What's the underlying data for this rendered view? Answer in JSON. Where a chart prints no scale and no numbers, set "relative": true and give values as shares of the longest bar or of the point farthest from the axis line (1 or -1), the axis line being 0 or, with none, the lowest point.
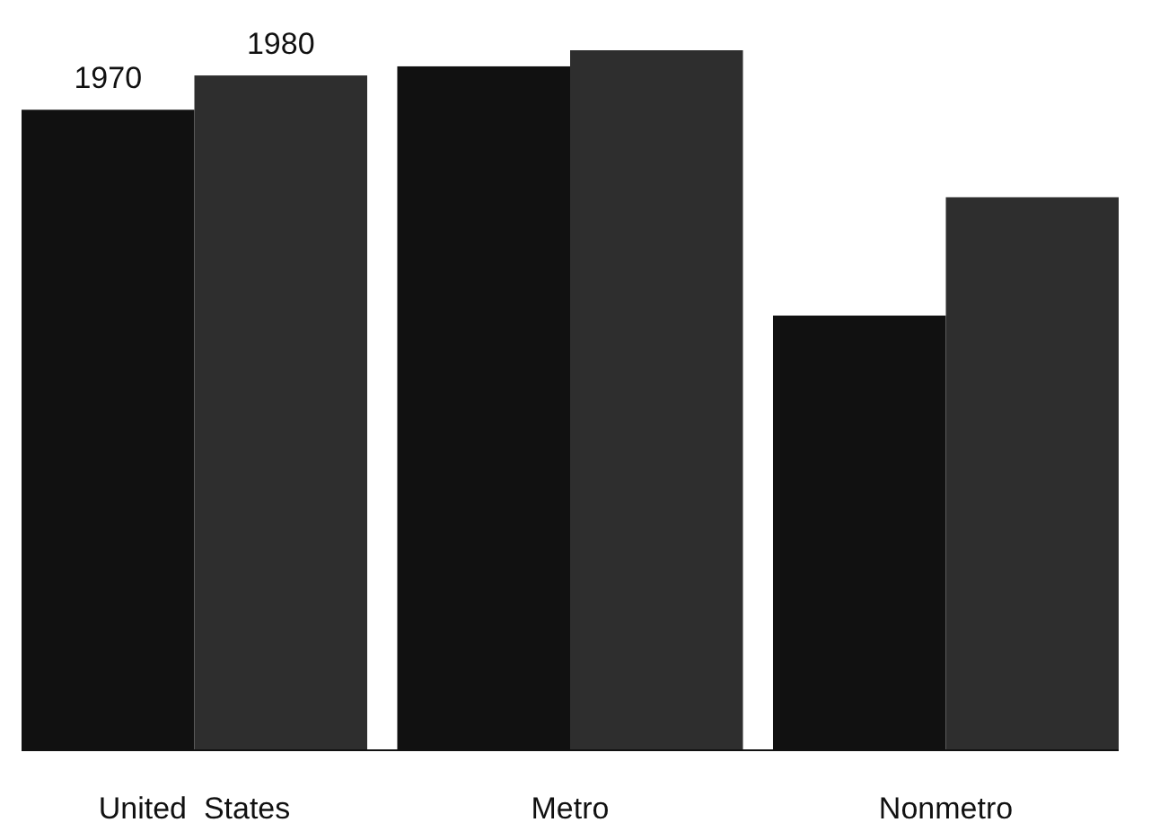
{
  "chart_data": {
    "type": "bar",
    "relative": true,
    "categories": [
      "United  States",
      "Metro",
      "Nonmetro"
    ],
    "series": [
      {
        "name": "1970",
        "color": "#111111",
        "values": [
          0.915,
          0.977,
          0.621
        ]
      },
      {
        "name": "1980",
        "color": "#2e2e2e",
        "values": [
          0.964,
          1,
          0.79
        ]
      }
    ]
  }
}
